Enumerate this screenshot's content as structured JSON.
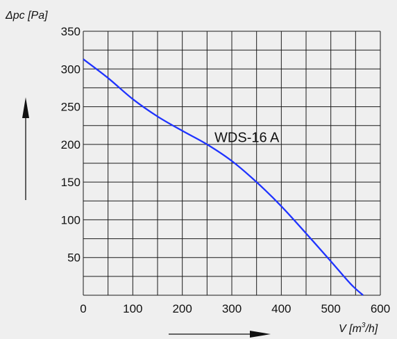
{
  "chart_data": {
    "type": "line",
    "ylabel": "Δpc [Pa]",
    "xlabel_text": "V [m",
    "xlabel_sup": "3",
    "xlabel_tail": "/h]",
    "xlim": [
      0,
      600
    ],
    "ylim": [
      0,
      350
    ],
    "x_ticks": [
      "0",
      "100",
      "200",
      "300",
      "400",
      "500",
      "600"
    ],
    "y_ticks": [
      "50",
      "100",
      "150",
      "200",
      "250",
      "300",
      "350"
    ],
    "grid": true,
    "series": [
      {
        "name": "WDS-16 A",
        "color": "#1f33ff",
        "x": [
          0,
          50,
          100,
          150,
          200,
          250,
          300,
          350,
          400,
          450,
          500,
          540,
          565
        ],
        "y": [
          313,
          288,
          260,
          237,
          218,
          200,
          178,
          150,
          118,
          82,
          45,
          15,
          0
        ]
      }
    ]
  }
}
